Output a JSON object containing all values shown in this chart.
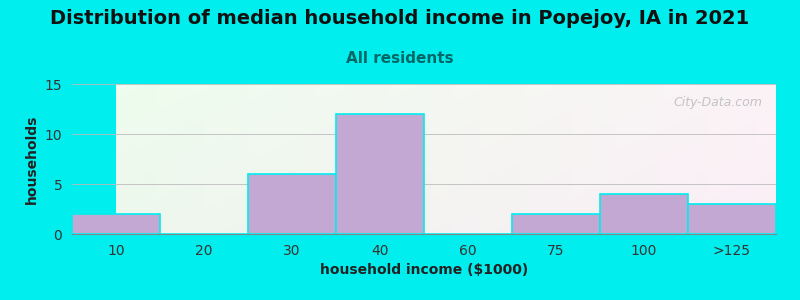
{
  "title": "Distribution of median household income in Popejoy, IA in 2021",
  "subtitle": "All residents",
  "xlabel": "household income ($1000)",
  "ylabel": "households",
  "background_color": "#00EEEE",
  "bar_color": "#C4A8D4",
  "bar_edgecolor": "#00EEEE",
  "categories": [
    "10",
    "20",
    "30",
    "40",
    "60",
    "75",
    "100",
    ">125"
  ],
  "values": [
    2,
    0,
    6,
    12,
    0,
    2,
    4,
    3
  ],
  "ylim": [
    0,
    15
  ],
  "yticks": [
    0,
    5,
    10,
    15
  ],
  "title_fontsize": 14,
  "subtitle_fontsize": 11,
  "subtitle_color": "#006666",
  "label_fontsize": 10,
  "tick_fontsize": 10,
  "watermark": "City-Data.com",
  "fig_width": 8.0,
  "fig_height": 3.0
}
